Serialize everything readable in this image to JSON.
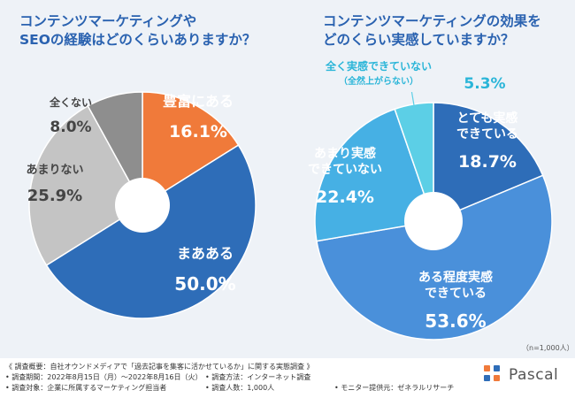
{
  "chart_data": [
    {
      "type": "pie",
      "title": "コンテンツマーケティングやSEOの経験はどのくらいありますか？",
      "title_lines": [
        "コンテンツマーケティングや",
        "SEOの経験はどのくらいありますか？"
      ],
      "slices": [
        {
          "label": "豊富にある",
          "label_lines": [
            "豊富にある"
          ],
          "value": 16.1,
          "value_text": "16.1%",
          "color": "#f07a3a",
          "text_color": "#ffffff"
        },
        {
          "label": "まあある",
          "label_lines": [
            "まあある"
          ],
          "value": 50.0,
          "value_text": "50.0%",
          "color": "#2e6db8",
          "text_color": "#ffffff"
        },
        {
          "label": "あまりない",
          "label_lines": [
            "あまりない"
          ],
          "value": 25.9,
          "value_text": "25.9%",
          "color": "#c4c4c4",
          "text_color": "#444444"
        },
        {
          "label": "全くない",
          "label_lines": [
            "全くない"
          ],
          "value": 8.0,
          "value_text": "8.0%",
          "color": "#8e8e8e",
          "text_color": "#444444"
        }
      ]
    },
    {
      "type": "pie",
      "title": "コンテンツマーケティングの効果をどのくらい実感していますか？",
      "title_lines": [
        "コンテンツマーケティングの効果を",
        "どのくらい実感していますか？"
      ],
      "note": "（n=1,000人）",
      "slices": [
        {
          "label": "とても実感できている",
          "label_lines": [
            "とても実感",
            "できている"
          ],
          "value": 18.7,
          "value_text": "18.7%",
          "color": "#2e6db8",
          "text_color": "#ffffff"
        },
        {
          "label": "ある程度実感できている",
          "label_lines": [
            "ある程度実感",
            "できている"
          ],
          "value": 53.6,
          "value_text": "53.6%",
          "color": "#4a90da",
          "text_color": "#ffffff"
        },
        {
          "label": "あまり実感できていない",
          "label_lines": [
            "あまり実感",
            "できていない"
          ],
          "value": 22.4,
          "value_text": "22.4%",
          "color": "#46b0e4",
          "text_color": "#ffffff"
        },
        {
          "label": "全く実感できていない（全然上がらない）",
          "label_lines": [
            "全く実感できていない",
            "（全然上がらない）"
          ],
          "value": 5.3,
          "value_text": "5.3%",
          "color": "#5ccfe6",
          "text_color": "#2ab5d8"
        }
      ]
    }
  ],
  "footer": {
    "summary": "《 調査概要：自社オウンドメディアで「過去記事を集客に活かせているか」に関する実態調査 》",
    "period": "• 調査期間：2022年8月15日（月）～2022年8月16日（火）",
    "method": "• 調査方法：インターネット調査",
    "target": "• 調査対象：企業に所属するマーケティング担当者",
    "count": "• 調査人数：1,000人",
    "monitor": "• モニター提供元：ゼネラルリサーチ"
  },
  "logo": {
    "text": "Pascal",
    "colors": [
      "#f07a3a",
      "#2e6db8"
    ]
  }
}
